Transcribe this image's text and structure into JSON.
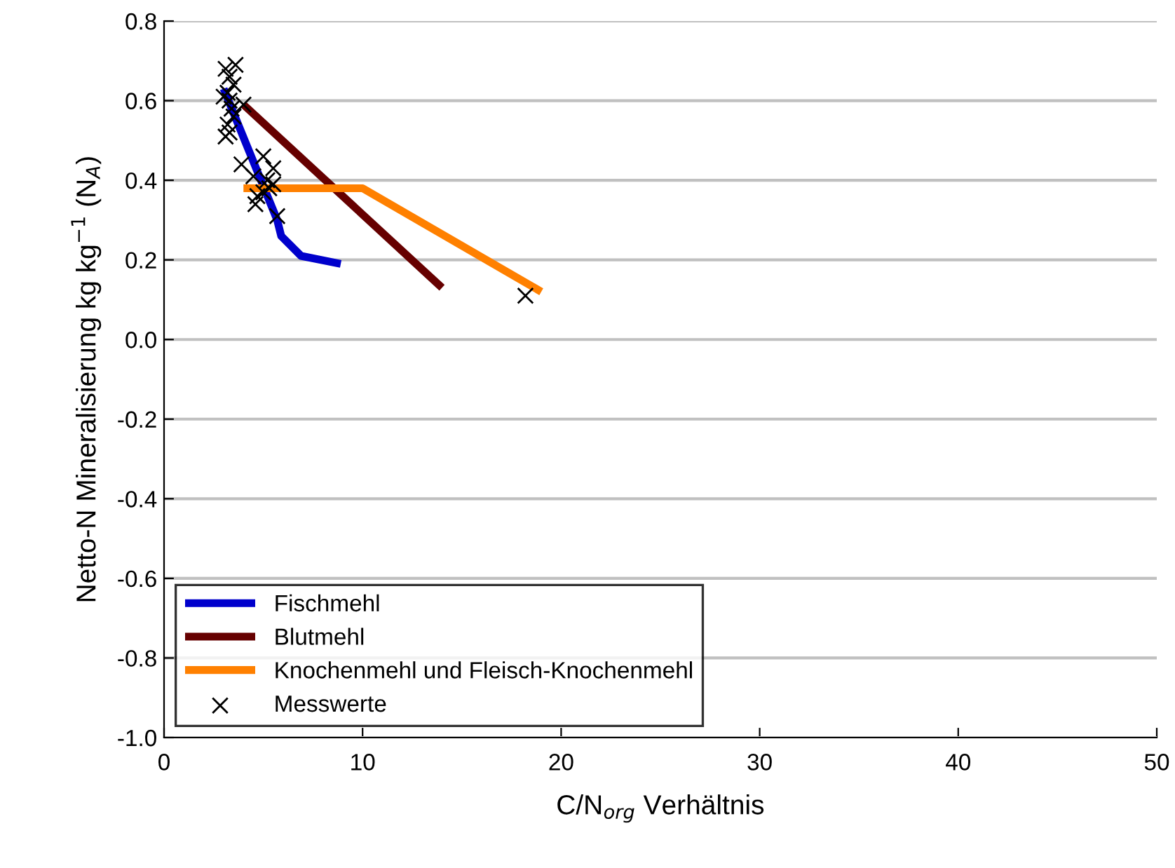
{
  "chart_data": {
    "type": "line",
    "xlabel": "C/N$_{org}$ Verhältnis",
    "ylabel": "Netto-N Mineralisierung kg kg$^{−1}$ (N$_{A}$)",
    "xlim": [
      0,
      50
    ],
    "ylim": [
      -1.0,
      0.8
    ],
    "xticks": [
      0,
      10,
      20,
      30,
      40,
      50
    ],
    "yticks": [
      {
        "value": -1.0,
        "label": "-1.0"
      },
      -0.8,
      -0.6,
      -0.4,
      -0.2,
      {
        "value": 0.0,
        "label": "0.0"
      },
      0.2,
      0.4,
      0.6,
      0.8
    ],
    "grid": "y",
    "legend": "bottom left",
    "series": [
      {
        "name": "Fischmehl",
        "color": "#0000cc",
        "x": [
          3.0,
          5.7,
          5.9,
          6.9,
          8.9
        ],
        "values": [
          0.63,
          0.3,
          0.26,
          0.21,
          0.19
        ]
      },
      {
        "name": "Blutmehl",
        "color": "#660000",
        "x": [
          4.0,
          14.0
        ],
        "values": [
          0.59,
          0.13
        ]
      },
      {
        "name": "Knochenmehl und Fleisch-Knochenmehl",
        "color": "#ff8000",
        "x": [
          4.0,
          10.0,
          19.0
        ],
        "values": [
          0.38,
          0.38,
          0.12
        ]
      },
      {
        "name": "Messwerte",
        "type": "scatter",
        "marker": "cross",
        "color": "#000000",
        "x": [
          3.1,
          3.3,
          3.6,
          3.2,
          3.5,
          3.0,
          3.3,
          3.4,
          3.5,
          3.2,
          3.3,
          3.1,
          4.0,
          3.9,
          4.5,
          5.0,
          5.5,
          5.2,
          4.7,
          4.6,
          5.0,
          5.3,
          5.5,
          5.7,
          18.2
        ],
        "values": [
          0.68,
          0.66,
          0.69,
          0.62,
          0.64,
          0.61,
          0.6,
          0.58,
          0.56,
          0.54,
          0.52,
          0.51,
          0.59,
          0.44,
          0.41,
          0.46,
          0.43,
          0.4,
          0.36,
          0.34,
          0.37,
          0.38,
          0.39,
          0.31,
          0.11
        ]
      }
    ]
  }
}
